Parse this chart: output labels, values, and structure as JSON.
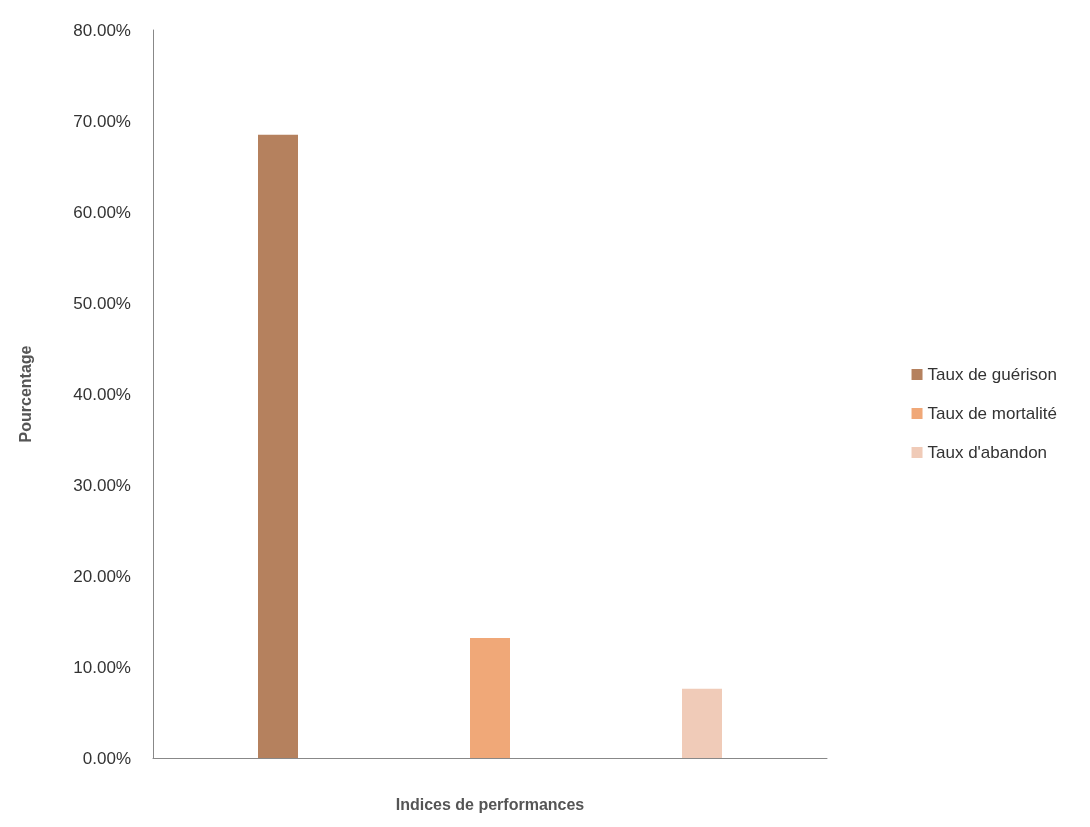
{
  "chart_data": {
    "type": "bar",
    "xlabel": "Indices de performances",
    "ylabel": "Pourcentage",
    "categories": [
      null
    ],
    "series": [
      {
        "name": "Taux de guérison",
        "color": "#b5815e",
        "values": [
          68.5
        ]
      },
      {
        "name": "Taux de mortalité",
        "color": "#f0a878",
        "values": [
          13.2
        ]
      },
      {
        "name": "Taux d'abandon",
        "color": "#f0cbb8",
        "values": [
          7.6
        ]
      }
    ],
    "ylim": [
      0,
      80
    ],
    "yticks": [
      {
        "value": 0,
        "label": "0.00%"
      },
      {
        "value": 10,
        "label": "10.00%"
      },
      {
        "value": 20,
        "label": "20.00%"
      },
      {
        "value": 30,
        "label": "30.00%"
      },
      {
        "value": 40,
        "label": "40.00%"
      },
      {
        "value": 50,
        "label": "50.00%"
      },
      {
        "value": 60,
        "label": "60.00%"
      },
      {
        "value": 70,
        "label": "70.00%"
      },
      {
        "value": 80,
        "label": "80.00%"
      }
    ],
    "grid": false,
    "legend": "right"
  }
}
